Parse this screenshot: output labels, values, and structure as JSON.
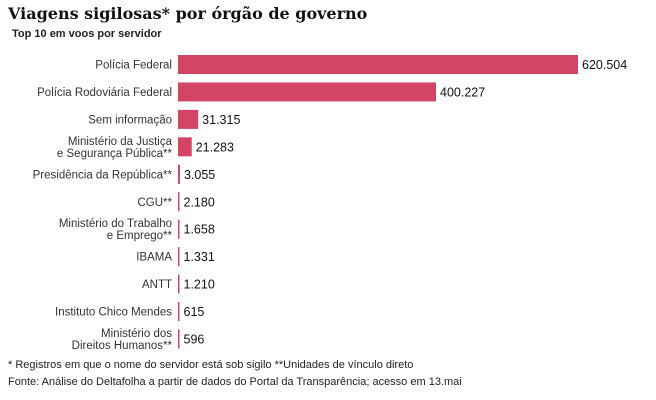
{
  "chart_data": {
    "type": "bar",
    "orientation": "horizontal",
    "title": "Viagens sigilosas* por órgão de governo",
    "subtitle": "Top 10 em voos por servidor",
    "categories": [
      [
        "Polícia Federal"
      ],
      [
        "Polícia Rodoviária Federal"
      ],
      [
        "Sem informação"
      ],
      [
        "Ministério da Justiça",
        "e Segurança Pública**"
      ],
      [
        "Presidência da República**"
      ],
      [
        "CGU**"
      ],
      [
        "Ministério do Trabalho",
        "e Emprego**"
      ],
      [
        "IBAMA"
      ],
      [
        "ANTT"
      ],
      [
        "Instituto Chico Mendes"
      ],
      [
        "Ministério dos",
        "Direitos Humanos**"
      ]
    ],
    "values": [
      620504,
      400227,
      31315,
      21283,
      3055,
      2180,
      1658,
      1331,
      1210,
      615,
      596
    ],
    "value_labels": [
      "620.504",
      "400.227",
      "31.315",
      "21.283",
      "3.055",
      "2.180",
      "1.658",
      "1.331",
      "1.210",
      "615",
      "596"
    ],
    "bar_color": "#d24565",
    "grid": false,
    "legend": "none",
    "footnote": "* Registros em que o nome do servidor está sob sigilo **Unidades de vínculo direto",
    "source": "Fonte: Análise do Deltafolha a partir de dados do Portal da Transparência; acesso em 13.mai"
  }
}
